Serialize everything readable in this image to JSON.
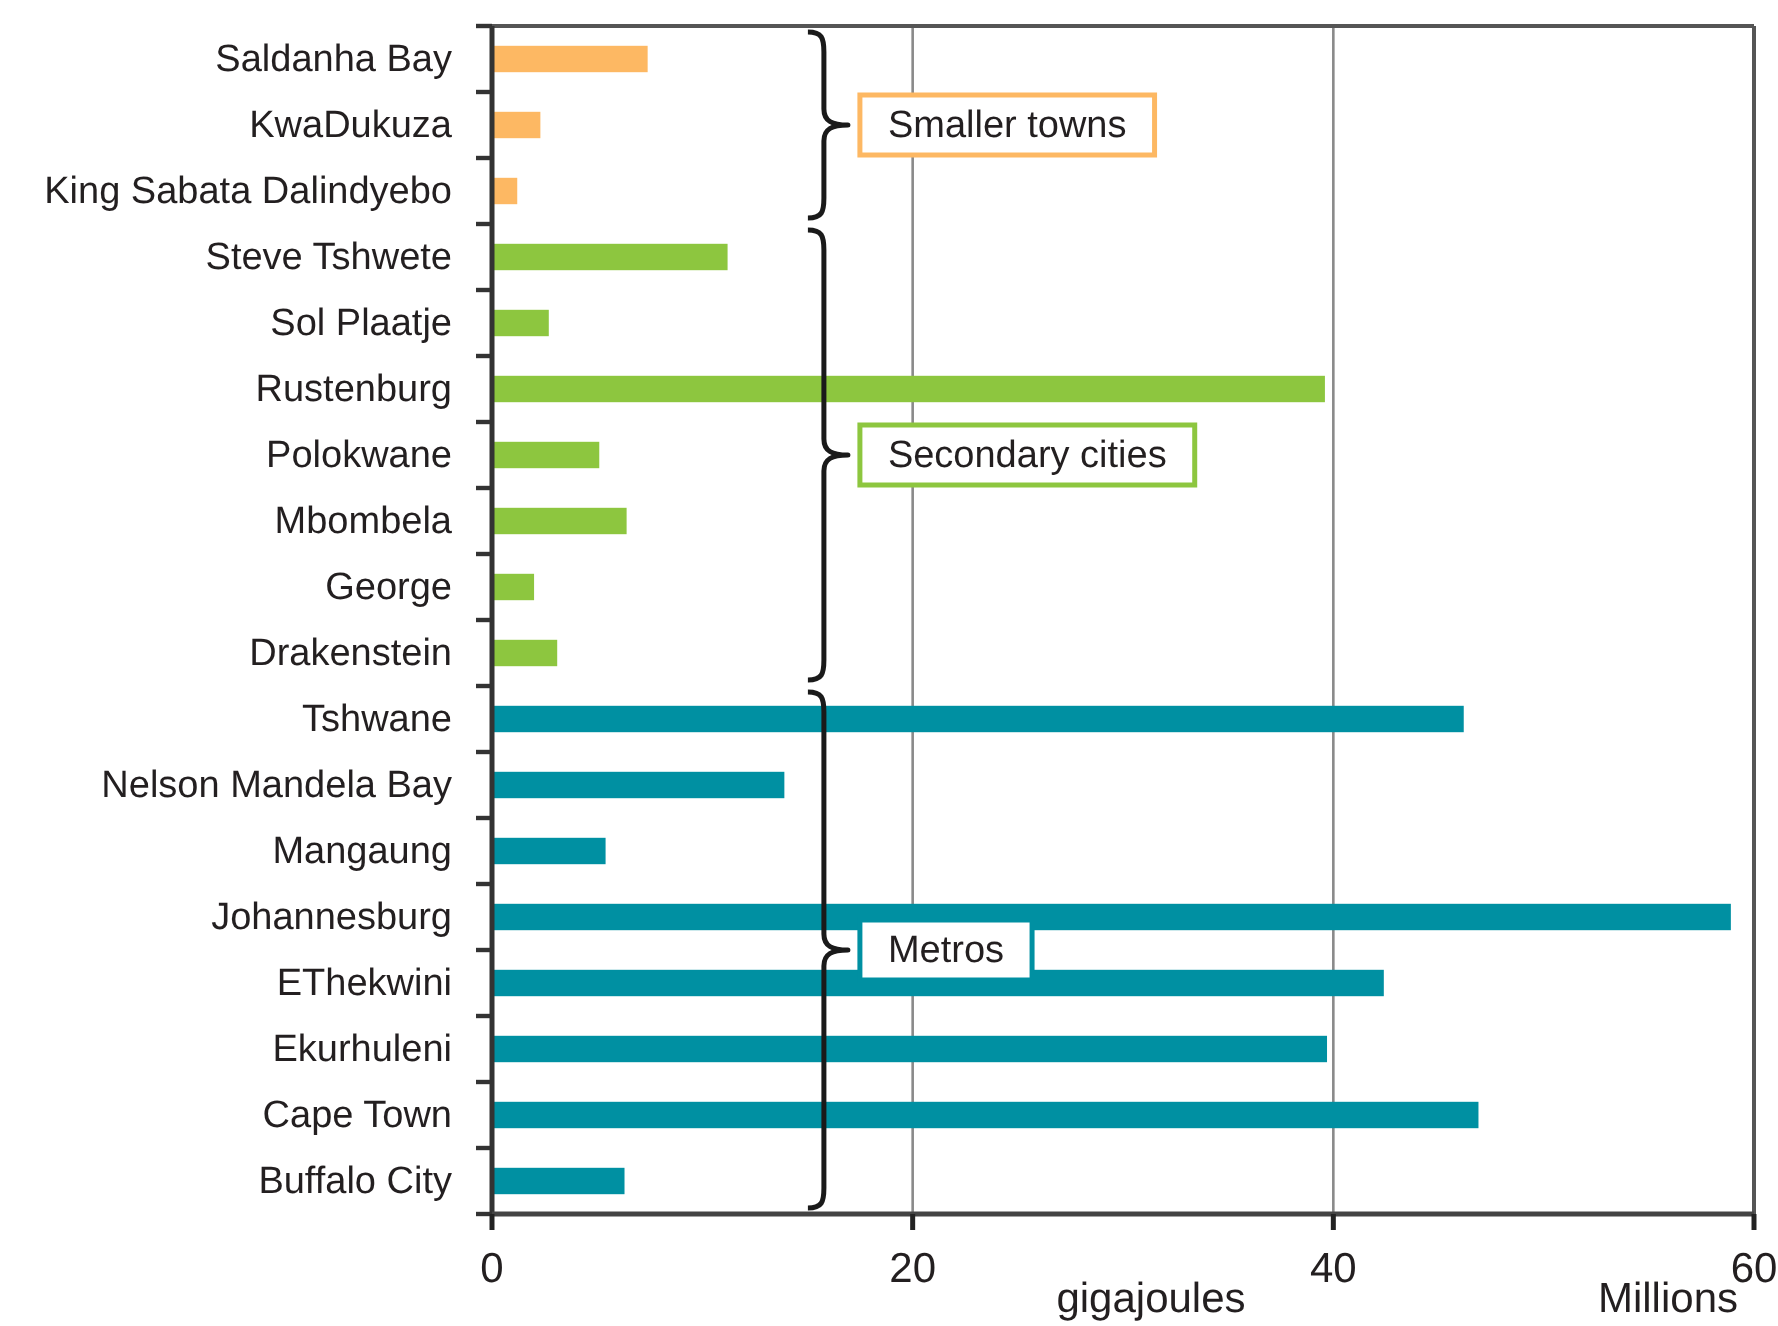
{
  "chart_data": {
    "type": "bar",
    "orientation": "horizontal",
    "stacked": true,
    "categories": [
      "Saldanha Bay",
      "KwaDukuza",
      "King Sabata Dalindyebo",
      "Steve Tshwete",
      "Sol Plaatje",
      "Rustenburg",
      "Polokwane",
      "Mbombela",
      "George",
      "Drakenstein",
      "Tshwane",
      "Nelson Mandela Bay",
      "Mangaung",
      "Johannesburg",
      "EThekwini",
      "Ekurhuleni",
      "Cape Town",
      "Buffalo City"
    ],
    "series": [
      {
        "name": "Smaller towns",
        "color": "#fdb863",
        "values": [
          7.4,
          2.3,
          1.2,
          null,
          null,
          null,
          null,
          null,
          null,
          null,
          null,
          null,
          null,
          null,
          null,
          null,
          null,
          null
        ]
      },
      {
        "name": "Secondary cities",
        "color": "#8dc63f",
        "values": [
          null,
          null,
          null,
          11.2,
          2.7,
          39.6,
          5.1,
          6.4,
          2.0,
          3.1,
          null,
          null,
          null,
          null,
          null,
          null,
          null,
          null
        ]
      },
      {
        "name": "Metros",
        "color": "#0090a2",
        "values": [
          null,
          null,
          null,
          null,
          null,
          null,
          null,
          null,
          null,
          null,
          46.2,
          13.9,
          5.4,
          58.9,
          42.4,
          39.7,
          46.9,
          6.3
        ]
      }
    ],
    "xlim": [
      0,
      60
    ],
    "xticks": [
      0,
      20,
      40,
      60
    ],
    "xlabel": "gigajoules",
    "annotations": [
      "Millions"
    ],
    "grid": "x"
  }
}
